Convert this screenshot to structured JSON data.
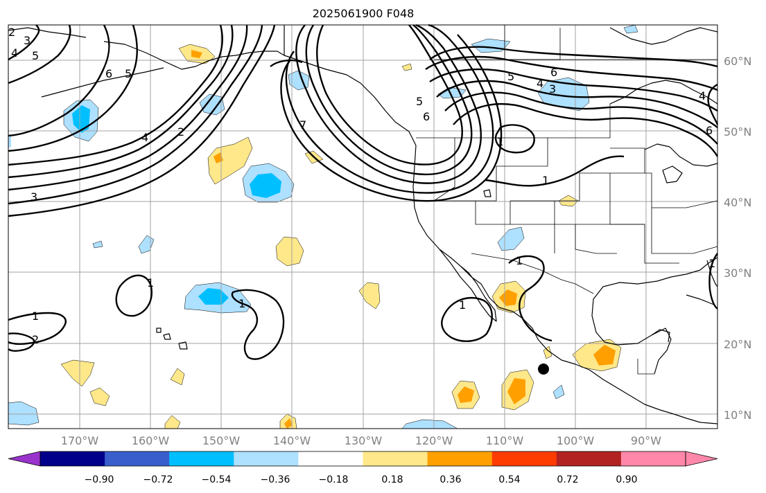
{
  "title": "2025061900 F048",
  "lat_labels": [
    "60°N",
    "50°N",
    "40°N",
    "30°N",
    "20°N",
    "10°N"
  ],
  "lon_labels": [
    "170°W",
    "160°W",
    "150°W",
    "140°W",
    "130°W",
    "120°W",
    "110°W",
    "100°W",
    "90°W"
  ],
  "contour_labels": [
    "2",
    "3",
    "4",
    "5",
    "6",
    "5",
    "4",
    "2",
    "3",
    "7",
    "5",
    "6",
    "5",
    "6",
    "4",
    "3",
    "1",
    "1",
    "4",
    "6",
    "1",
    "1",
    "1",
    "1",
    "1",
    "2",
    "1"
  ],
  "colorbar": {
    "tick_labels": [
      "−0.90",
      "−0.72",
      "−0.54",
      "−0.36",
      "−0.18",
      "0.18",
      "0.36",
      "0.54",
      "0.72",
      "0.90"
    ],
    "colors": [
      "#9933cc",
      "#00008b",
      "#3a5fcd",
      "#00bfff",
      "#aee0ff",
      "#ffffff",
      "#ffe88a",
      "#ffa000",
      "#ff3c00",
      "#b22222",
      "#ff88aa",
      "#ff88aa"
    ]
  },
  "fill_colors": {
    "light_blue": "#aee0ff",
    "blue": "#00bfff",
    "light_yellow": "#ffe88a",
    "orange": "#ffa000"
  }
}
